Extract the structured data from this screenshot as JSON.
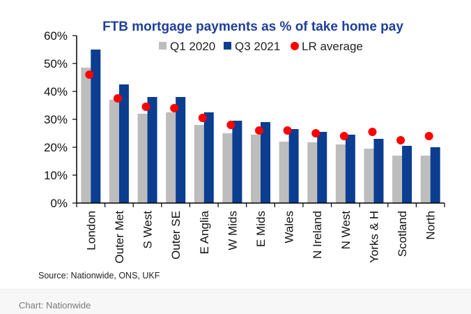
{
  "chart_data": {
    "type": "bar",
    "title": "FTB mortgage payments as % of take home pay",
    "categories": [
      "London",
      "Outer Met",
      "S West",
      "Outer SE",
      "E Anglia",
      "W Mids",
      "E Mids",
      "Wales",
      "N Ireland",
      "N West",
      "Yorks & H",
      "Scotland",
      "North"
    ],
    "series": [
      {
        "name": "Q1 2020",
        "kind": "bar",
        "color": "#bdbdbd",
        "values": [
          48.5,
          37,
          32,
          32.5,
          28,
          25,
          24.5,
          22,
          21.8,
          21,
          19.5,
          17,
          17
        ]
      },
      {
        "name": "Q3 2021",
        "kind": "bar",
        "color": "#0b3d91",
        "values": [
          55,
          42.5,
          38,
          38,
          32.5,
          29.5,
          29,
          26.5,
          25.5,
          24.5,
          23,
          20.5,
          20
        ]
      },
      {
        "name": "LR average",
        "kind": "dot",
        "color": "#ff0000",
        "values": [
          46,
          37.5,
          34.5,
          34,
          30.5,
          28,
          26,
          26,
          25,
          24,
          25.5,
          22.5,
          24
        ]
      }
    ],
    "ylim": [
      0,
      60
    ],
    "yticks": [
      0,
      10,
      20,
      30,
      40,
      50,
      60
    ],
    "ytick_labels": [
      "0%",
      "10%",
      "20%",
      "30%",
      "40%",
      "50%",
      "60%"
    ],
    "xlabel": "",
    "ylabel": "",
    "grid": false,
    "legend_position": "top-center"
  },
  "source": "Source: Nationwide, ONS, UKF",
  "footer": "Chart: Nationwide"
}
